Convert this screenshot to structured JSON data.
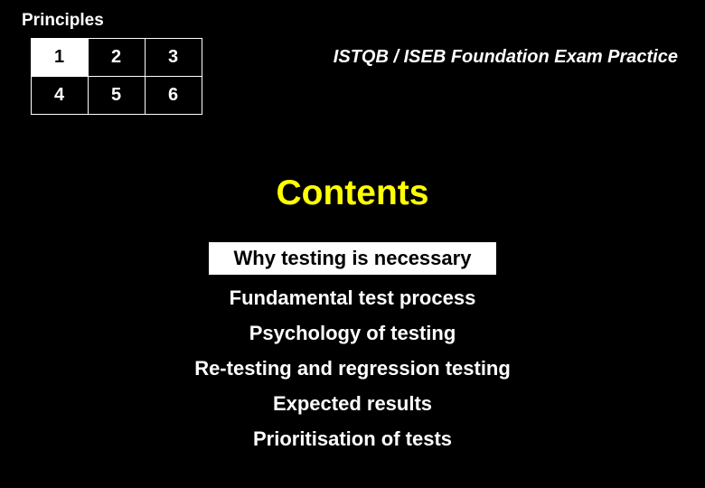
{
  "principles_label": "Principles",
  "grid": {
    "cells": [
      "1",
      "2",
      "3",
      "4",
      "5",
      "6"
    ],
    "highlight_index": 0
  },
  "header_text": "ISTQB / ISEB Foundation Exam Practice",
  "contents_title": "Contents",
  "topics": [
    {
      "label": "Why testing is necessary",
      "highlight": true
    },
    {
      "label": "Fundamental test process",
      "highlight": false
    },
    {
      "label": "Psychology of testing",
      "highlight": false
    },
    {
      "label": "Re-testing and regression testing",
      "highlight": false
    },
    {
      "label": "Expected results",
      "highlight": false
    },
    {
      "label": "Prioritisation of tests",
      "highlight": false
    }
  ],
  "colors": {
    "background": "#000000",
    "text_primary": "#ffffff",
    "accent": "#ffff00",
    "highlight_bg": "#ffffff",
    "highlight_text": "#000000"
  }
}
